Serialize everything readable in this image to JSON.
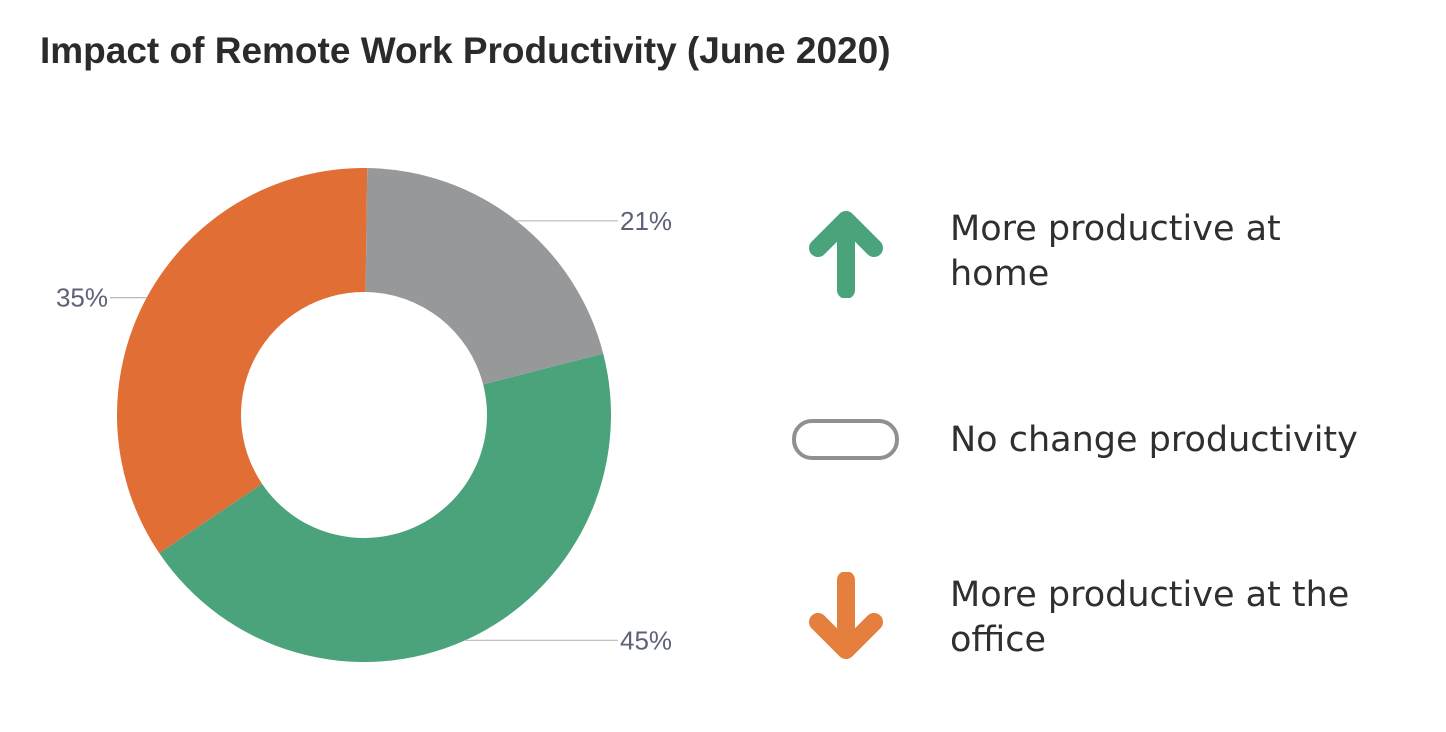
{
  "title": "Impact of Remote Work Productivity (June 2020)",
  "chart_data": {
    "type": "pie",
    "variant": "donut",
    "title": "Impact of Remote Work Productivity (June 2020)",
    "slices": [
      {
        "label": "More productive at home",
        "value": 45,
        "display": "45%",
        "color": "#4ba37c"
      },
      {
        "label": "More productive at the office",
        "value": 35,
        "display": "35%",
        "color": "#e06e35"
      },
      {
        "label": "No change productivity",
        "value": 21,
        "display": "21%",
        "color": "#97989a"
      }
    ],
    "legend_placement": "right"
  },
  "legend": {
    "items": [
      {
        "label": "More productive at home",
        "icon": "arrow-up-icon",
        "color": "#4ba37c"
      },
      {
        "label": "No change productivity",
        "icon": "neutral-pill-icon",
        "color": "#8f9092"
      },
      {
        "label": "More productive at the office",
        "icon": "arrow-down-icon",
        "color": "#e57f3d"
      }
    ]
  }
}
